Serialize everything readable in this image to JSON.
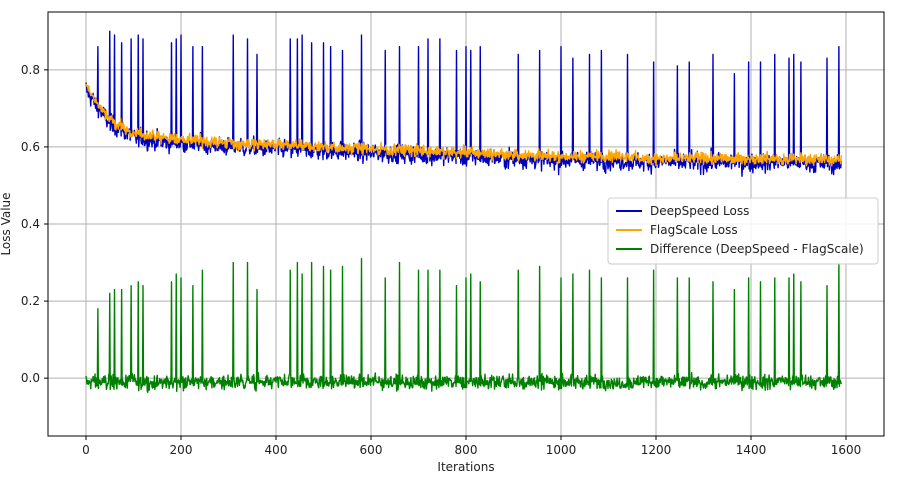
{
  "chart_data": {
    "type": "line",
    "title": "",
    "xlabel": "Iterations",
    "ylabel": "Loss Value",
    "xlim": [
      -80,
      1680
    ],
    "ylim": [
      -0.15,
      0.95
    ],
    "x_ticks": [
      0,
      200,
      400,
      600,
      800,
      1000,
      1200,
      1400,
      1600
    ],
    "y_ticks": [
      0.0,
      0.2,
      0.4,
      0.6,
      0.8
    ],
    "x_tick_labels": [
      "0",
      "200",
      "400",
      "600",
      "800",
      "1000",
      "1200",
      "1400",
      "1600"
    ],
    "y_tick_labels": [
      "0.0",
      "0.2",
      "0.4",
      "0.6",
      "0.8"
    ],
    "grid": true,
    "legend_position": "center-right",
    "iterations": [
      0,
      1590
    ],
    "series": [
      {
        "name": "DeepSpeed Loss",
        "color": "#0000bf",
        "x": [
          0,
          20,
          50,
          100,
          150,
          200,
          300,
          400,
          500,
          600,
          700,
          800,
          900,
          1000,
          1100,
          1200,
          1300,
          1400,
          1500,
          1590
        ],
        "y": [
          0.74,
          0.7,
          0.66,
          0.62,
          0.61,
          0.61,
          0.6,
          0.6,
          0.595,
          0.59,
          0.585,
          0.58,
          0.575,
          0.57,
          0.57,
          0.565,
          0.565,
          0.565,
          0.565,
          0.56
        ],
        "spike_x": [
          25,
          50,
          60,
          75,
          95,
          110,
          120,
          180,
          190,
          200,
          225,
          245,
          310,
          340,
          360,
          430,
          445,
          455,
          475,
          500,
          515,
          540,
          580,
          630,
          660,
          700,
          720,
          745,
          780,
          800,
          810,
          830,
          910,
          955,
          1000,
          1025,
          1060,
          1085,
          1140,
          1195,
          1245,
          1270,
          1320,
          1365,
          1395,
          1420,
          1450,
          1480,
          1490,
          1505,
          1560,
          1585
        ],
        "spike_y": [
          0.86,
          0.9,
          0.89,
          0.87,
          0.88,
          0.89,
          0.88,
          0.87,
          0.88,
          0.89,
          0.86,
          0.86,
          0.89,
          0.88,
          0.84,
          0.88,
          0.88,
          0.89,
          0.87,
          0.87,
          0.86,
          0.85,
          0.89,
          0.85,
          0.86,
          0.86,
          0.88,
          0.88,
          0.85,
          0.86,
          0.85,
          0.86,
          0.84,
          0.85,
          0.86,
          0.83,
          0.84,
          0.85,
          0.84,
          0.82,
          0.81,
          0.82,
          0.84,
          0.79,
          0.82,
          0.82,
          0.84,
          0.83,
          0.84,
          0.82,
          0.83,
          0.86
        ]
      },
      {
        "name": "FlagScale Loss",
        "color": "#ffa500",
        "x": [
          0,
          20,
          50,
          100,
          150,
          200,
          300,
          400,
          500,
          600,
          700,
          800,
          900,
          1000,
          1100,
          1200,
          1300,
          1400,
          1500,
          1590
        ],
        "y": [
          0.76,
          0.72,
          0.67,
          0.635,
          0.625,
          0.62,
          0.61,
          0.605,
          0.6,
          0.595,
          0.59,
          0.585,
          0.58,
          0.575,
          0.575,
          0.57,
          0.57,
          0.57,
          0.57,
          0.565
        ]
      },
      {
        "name": "Difference (DeepSpeed - FlagScale)",
        "color": "#008000",
        "x": [
          0,
          200,
          400,
          600,
          800,
          1000,
          1200,
          1400,
          1590
        ],
        "y": [
          -0.01,
          -0.01,
          -0.01,
          -0.01,
          -0.01,
          -0.01,
          -0.01,
          -0.01,
          0.0
        ],
        "spike_x": [
          25,
          50,
          60,
          75,
          95,
          110,
          120,
          180,
          190,
          200,
          225,
          245,
          310,
          340,
          360,
          430,
          445,
          455,
          475,
          500,
          515,
          540,
          580,
          630,
          660,
          700,
          720,
          745,
          780,
          800,
          810,
          830,
          910,
          955,
          1000,
          1025,
          1060,
          1085,
          1140,
          1195,
          1245,
          1270,
          1320,
          1365,
          1395,
          1420,
          1450,
          1480,
          1490,
          1505,
          1560,
          1585
        ],
        "spike_y": [
          0.18,
          0.22,
          0.23,
          0.23,
          0.24,
          0.25,
          0.24,
          0.25,
          0.27,
          0.26,
          0.24,
          0.28,
          0.3,
          0.3,
          0.23,
          0.28,
          0.3,
          0.27,
          0.3,
          0.29,
          0.28,
          0.29,
          0.31,
          0.26,
          0.3,
          0.28,
          0.28,
          0.28,
          0.24,
          0.26,
          0.27,
          0.25,
          0.28,
          0.29,
          0.26,
          0.27,
          0.28,
          0.26,
          0.26,
          0.28,
          0.26,
          0.26,
          0.25,
          0.23,
          0.26,
          0.25,
          0.26,
          0.26,
          0.27,
          0.25,
          0.24,
          0.3
        ]
      }
    ]
  }
}
